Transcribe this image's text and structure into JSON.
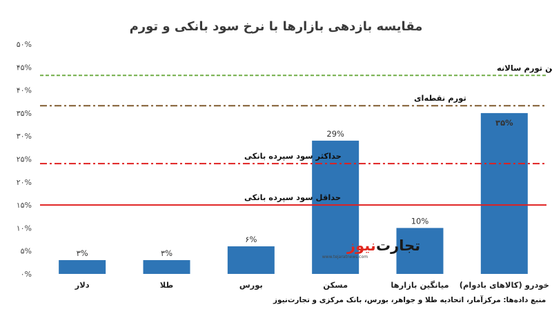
{
  "chart_data": {
    "type": "bar",
    "title": "مقایسه بازدهی بازارها با نرخ سود بانکی و تورم",
    "categories": [
      "دلار",
      "طلا",
      "بورس",
      "مسکن",
      "میانگین بازارها",
      "خودرو (کالاهای بادوام)"
    ],
    "values": [
      3,
      3,
      6,
      29,
      10,
      35
    ],
    "value_labels": [
      "۳%",
      "۳%",
      "۶%",
      "29%",
      "10%",
      "۳۵%"
    ],
    "bar_color": "#2e75b6",
    "ylim": [
      0,
      50
    ],
    "y_ticks": [
      0,
      5,
      10,
      15,
      20,
      25,
      30,
      35,
      40,
      45,
      50
    ],
    "y_tick_labels": [
      "۰%",
      "۵%",
      "۱۰%",
      "۱۵%",
      "۲۰%",
      "۲۵%",
      "۳۰%",
      "۳۵%",
      "۴۰%",
      "۴۵%",
      "۵۰%"
    ],
    "grid": false,
    "reference_lines": [
      {
        "name": "میانگین تورم سالانه",
        "value": 43.2,
        "color": "#70ad47",
        "style": "dashed"
      },
      {
        "name": "تورم نقطه‌ای",
        "value": 36.6,
        "color": "#7f5a2e",
        "style": "dashdot"
      },
      {
        "name": "حداکثر سود سپرده بانکی",
        "value": 24,
        "color": "#e02020",
        "style": "dashdot"
      },
      {
        "name": "حداقل سود سپرده بانکی",
        "value": 15,
        "color": "#e02020",
        "style": "solid"
      }
    ]
  },
  "source_note": "منبع داده‌ها: مرکزآمار، اتحادیه طلا و جواهر، بورس، بانک مرکزی و تجارت‌نیوز",
  "logo": {
    "main": "تجارت",
    "accent": "نیوز",
    "url": "www.tejaratnews.com"
  }
}
